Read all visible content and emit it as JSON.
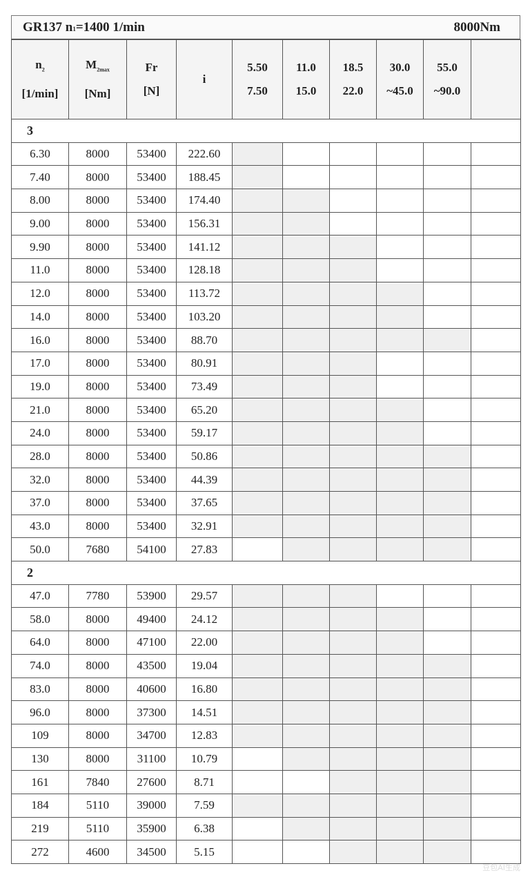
{
  "header": {
    "model": "GR137",
    "input_speed_label": "n",
    "input_speed_sub": "1",
    "input_speed_value": "=1400 1/min",
    "torque": "8000Nm"
  },
  "columns": [
    {
      "line1": "n",
      "sub": "2",
      "line2": "[1/min]"
    },
    {
      "line1": "M",
      "sub": "2max",
      "line2": "[Nm]"
    },
    {
      "line1": "Fr",
      "sub": "",
      "line2": "[N]"
    },
    {
      "line1": "i",
      "sub": "",
      "line2": ""
    },
    {
      "line1": "5.50",
      "line2": "7.50"
    },
    {
      "line1": "11.0",
      "line2": "15.0"
    },
    {
      "line1": "18.5",
      "line2": "22.0"
    },
    {
      "line1": "30.0",
      "line2": "~45.0"
    },
    {
      "line1": "55.0",
      "line2": "~90.0"
    },
    {
      "line1": "",
      "line2": ""
    }
  ],
  "shade_color": "#efefef",
  "sections": [
    {
      "label": "3",
      "rows": [
        {
          "n2": "6.30",
          "m2": "8000",
          "fr": "53400",
          "i": "222.60",
          "shaded": [
            1
          ]
        },
        {
          "n2": "7.40",
          "m2": "8000",
          "fr": "53400",
          "i": "188.45",
          "shaded": [
            1
          ]
        },
        {
          "n2": "8.00",
          "m2": "8000",
          "fr": "53400",
          "i": "174.40",
          "shaded": [
            1,
            2
          ]
        },
        {
          "n2": "9.00",
          "m2": "8000",
          "fr": "53400",
          "i": "156.31",
          "shaded": [
            1,
            2
          ]
        },
        {
          "n2": "9.90",
          "m2": "8000",
          "fr": "53400",
          "i": "141.12",
          "shaded": [
            1,
            2,
            3
          ]
        },
        {
          "n2": "11.0",
          "m2": "8000",
          "fr": "53400",
          "i": "128.18",
          "shaded": [
            1,
            2,
            3
          ]
        },
        {
          "n2": "12.0",
          "m2": "8000",
          "fr": "53400",
          "i": "113.72",
          "shaded": [
            1,
            2,
            3,
            4
          ]
        },
        {
          "n2": "14.0",
          "m2": "8000",
          "fr": "53400",
          "i": "103.20",
          "shaded": [
            1,
            2,
            3,
            4
          ]
        },
        {
          "n2": "16.0",
          "m2": "8000",
          "fr": "53400",
          "i": "88.70",
          "shaded": [
            1,
            2,
            3,
            4,
            5
          ]
        },
        {
          "n2": "17.0",
          "m2": "8000",
          "fr": "53400",
          "i": "80.91",
          "shaded": [
            1,
            2,
            3
          ]
        },
        {
          "n2": "19.0",
          "m2": "8000",
          "fr": "53400",
          "i": "73.49",
          "shaded": [
            1,
            2,
            3
          ]
        },
        {
          "n2": "21.0",
          "m2": "8000",
          "fr": "53400",
          "i": "65.20",
          "shaded": [
            1,
            2,
            3,
            4
          ]
        },
        {
          "n2": "24.0",
          "m2": "8000",
          "fr": "53400",
          "i": "59.17",
          "shaded": [
            1,
            2,
            3,
            4
          ]
        },
        {
          "n2": "28.0",
          "m2": "8000",
          "fr": "53400",
          "i": "50.86",
          "shaded": [
            1,
            2,
            3,
            4,
            5
          ]
        },
        {
          "n2": "32.0",
          "m2": "8000",
          "fr": "53400",
          "i": "44.39",
          "shaded": [
            1,
            2,
            3,
            4,
            5
          ]
        },
        {
          "n2": "37.0",
          "m2": "8000",
          "fr": "53400",
          "i": "37.65",
          "shaded": [
            1,
            2,
            3,
            4,
            5
          ]
        },
        {
          "n2": "43.0",
          "m2": "8000",
          "fr": "53400",
          "i": "32.91",
          "shaded": [
            1,
            2,
            3,
            4,
            5
          ]
        },
        {
          "n2": "50.0",
          "m2": "7680",
          "fr": "54100",
          "i": "27.83",
          "shaded": [
            2,
            3,
            4,
            5
          ]
        }
      ]
    },
    {
      "label": "2",
      "rows": [
        {
          "n2": "47.0",
          "m2": "7780",
          "fr": "53900",
          "i": "29.57",
          "shaded": [
            1,
            2,
            3
          ]
        },
        {
          "n2": "58.0",
          "m2": "8000",
          "fr": "49400",
          "i": "24.12",
          "shaded": [
            1,
            2,
            3,
            4
          ]
        },
        {
          "n2": "64.0",
          "m2": "8000",
          "fr": "47100",
          "i": "22.00",
          "shaded": [
            1,
            2,
            3,
            4
          ]
        },
        {
          "n2": "74.0",
          "m2": "8000",
          "fr": "43500",
          "i": "19.04",
          "shaded": [
            1,
            2,
            3,
            4,
            5
          ]
        },
        {
          "n2": "83.0",
          "m2": "8000",
          "fr": "40600",
          "i": "16.80",
          "shaded": [
            1,
            2,
            3,
            4,
            5
          ]
        },
        {
          "n2": "96.0",
          "m2": "8000",
          "fr": "37300",
          "i": "14.51",
          "shaded": [
            1,
            2,
            3,
            4,
            5
          ]
        },
        {
          "n2": "109",
          "m2": "8000",
          "fr": "34700",
          "i": "12.83",
          "shaded": [
            1,
            2,
            3,
            4,
            5
          ]
        },
        {
          "n2": "130",
          "m2": "8000",
          "fr": "31100",
          "i": "10.79",
          "shaded": [
            2,
            3,
            4,
            5
          ]
        },
        {
          "n2": "161",
          "m2": "7840",
          "fr": "27600",
          "i": "8.71",
          "shaded": [
            3,
            4,
            5
          ]
        },
        {
          "n2": "184",
          "m2": "5110",
          "fr": "39000",
          "i": "7.59",
          "shaded": [
            1,
            2,
            3,
            4,
            5
          ]
        },
        {
          "n2": "219",
          "m2": "5110",
          "fr": "35900",
          "i": "6.38",
          "shaded": [
            2,
            3,
            4,
            5
          ]
        },
        {
          "n2": "272",
          "m2": "4600",
          "fr": "34500",
          "i": "5.15",
          "shaded": [
            3,
            4,
            5
          ]
        }
      ]
    }
  ],
  "watermark": "豆包AI生成"
}
